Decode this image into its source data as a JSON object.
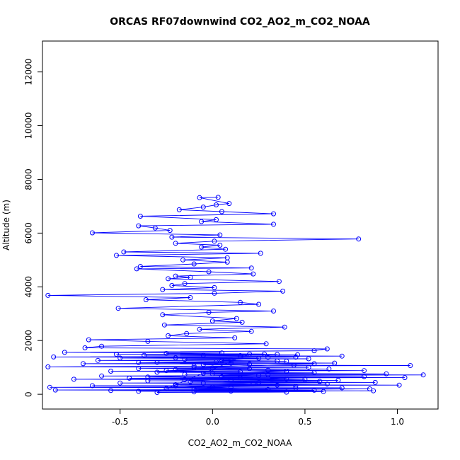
{
  "chart_data": {
    "type": "scatter",
    "title": "ORCAS RF07downwind CO2_AO2_m_CO2_NOAA",
    "xlabel": "CO2_AO2_m_CO2_NOAA",
    "ylabel": "Altitude (m)",
    "xlim": [
      -0.92,
      1.22
    ],
    "ylim": [
      -550,
      13150
    ],
    "xticks": [
      -0.5,
      0.0,
      0.5,
      1.0
    ],
    "xtick_labels": [
      "-0.5",
      "0.0",
      "0.5",
      "1.0"
    ],
    "yticks": [
      0,
      2000,
      4000,
      6000,
      8000,
      10000,
      12000
    ],
    "ytick_labels": [
      "0",
      "2000",
      "4000",
      "6000",
      "8000",
      "10000",
      "12000"
    ],
    "grid": false,
    "series": [
      {
        "color": "#0000ff",
        "connected": true,
        "marker": "open-circle",
        "points": [
          [
            0.03,
            7330
          ],
          [
            -0.07,
            7320
          ],
          [
            0.09,
            7100
          ],
          [
            0.02,
            7050
          ],
          [
            -0.05,
            6970
          ],
          [
            -0.18,
            6870
          ],
          [
            0.05,
            6800
          ],
          [
            0.33,
            6720
          ],
          [
            -0.39,
            6630
          ],
          [
            0.02,
            6500
          ],
          [
            -0.06,
            6430
          ],
          [
            0.33,
            6330
          ],
          [
            -0.4,
            6270
          ],
          [
            -0.31,
            6190
          ],
          [
            -0.23,
            6100
          ],
          [
            -0.65,
            6010
          ],
          [
            0.04,
            5930
          ],
          [
            -0.22,
            5850
          ],
          [
            0.79,
            5780
          ],
          [
            0.01,
            5700
          ],
          [
            -0.2,
            5620
          ],
          [
            0.04,
            5550
          ],
          [
            -0.06,
            5480
          ],
          [
            0.07,
            5400
          ],
          [
            -0.48,
            5300
          ],
          [
            0.26,
            5250
          ],
          [
            -0.52,
            5170
          ],
          [
            0.08,
            5080
          ],
          [
            -0.16,
            5000
          ],
          [
            0.08,
            4920
          ],
          [
            -0.1,
            4850
          ],
          [
            -0.39,
            4760
          ],
          [
            0.21,
            4700
          ],
          [
            -0.41,
            4670
          ],
          [
            -0.02,
            4560
          ],
          [
            0.22,
            4480
          ],
          [
            -0.2,
            4400
          ],
          [
            -0.12,
            4350
          ],
          [
            -0.24,
            4300
          ],
          [
            0.36,
            4200
          ],
          [
            -0.15,
            4120
          ],
          [
            -0.22,
            4050
          ],
          [
            0.01,
            3970
          ],
          [
            -0.27,
            3900
          ],
          [
            0.38,
            3840
          ],
          [
            0.01,
            3760
          ],
          [
            -0.89,
            3680
          ],
          [
            -0.12,
            3600
          ],
          [
            -0.36,
            3520
          ],
          [
            0.15,
            3420
          ],
          [
            0.25,
            3350
          ],
          [
            -0.51,
            3200
          ],
          [
            0.33,
            3100
          ],
          [
            -0.02,
            3050
          ],
          [
            -0.27,
            2960
          ],
          [
            0.13,
            2820
          ],
          [
            0.0,
            2730
          ],
          [
            0.16,
            2680
          ],
          [
            -0.26,
            2580
          ],
          [
            0.39,
            2500
          ],
          [
            -0.07,
            2420
          ],
          [
            0.21,
            2340
          ],
          [
            -0.14,
            2260
          ],
          [
            -0.24,
            2180
          ],
          [
            0.12,
            2100
          ],
          [
            -0.67,
            2030
          ],
          [
            -0.35,
            1970
          ],
          [
            0.29,
            1880
          ],
          [
            -0.6,
            1790
          ],
          [
            -0.69,
            1730
          ],
          [
            0.62,
            1690
          ],
          [
            0.55,
            1620
          ],
          [
            -0.8,
            1560
          ],
          [
            0.05,
            1540
          ],
          [
            -0.25,
            1520
          ],
          [
            0.28,
            1500
          ],
          [
            -0.52,
            1490
          ],
          [
            0.46,
            1470
          ],
          [
            -0.37,
            1450
          ],
          [
            0.7,
            1420
          ],
          [
            -0.86,
            1390
          ],
          [
            0.3,
            1370
          ],
          [
            -0.5,
            1350
          ],
          [
            0.52,
            1320
          ],
          [
            -0.15,
            1300
          ],
          [
            0.1,
            1280
          ],
          [
            -0.62,
            1260
          ],
          [
            0.4,
            1230
          ],
          [
            0.02,
            1210
          ],
          [
            -0.3,
            1190
          ],
          [
            0.66,
            1160
          ],
          [
            -0.7,
            1140
          ],
          [
            0.2,
            1120
          ],
          [
            -0.05,
            1100
          ],
          [
            0.44,
            1080
          ],
          [
            1.07,
            1070
          ],
          [
            -0.1,
            1050
          ],
          [
            -0.89,
            1020
          ],
          [
            0.52,
            1000
          ],
          [
            0.0,
            980
          ],
          [
            -0.4,
            960
          ],
          [
            0.63,
            940
          ],
          [
            -0.2,
            920
          ],
          [
            0.3,
            900
          ],
          [
            0.82,
            880
          ],
          [
            -0.55,
            860
          ],
          [
            0.15,
            840
          ],
          [
            -0.3,
            820
          ],
          [
            0.55,
            800
          ],
          [
            -0.05,
            780
          ],
          [
            0.94,
            760
          ],
          [
            -0.15,
            740
          ],
          [
            1.14,
            720
          ],
          [
            0.25,
            700
          ],
          [
            -0.6,
            680
          ],
          [
            0.82,
            660
          ],
          [
            0.05,
            640
          ],
          [
            1.04,
            620
          ],
          [
            -0.45,
            600
          ],
          [
            0.4,
            580
          ],
          [
            -0.75,
            560
          ],
          [
            0.1,
            540
          ],
          [
            0.68,
            520
          ],
          [
            -0.35,
            500
          ],
          [
            0.58,
            480
          ],
          [
            -0.12,
            460
          ],
          [
            0.88,
            440
          ],
          [
            -0.5,
            420
          ],
          [
            0.22,
            400
          ],
          [
            0.62,
            380
          ],
          [
            -0.2,
            360
          ],
          [
            1.01,
            340
          ],
          [
            -0.65,
            320
          ],
          [
            0.45,
            300
          ],
          [
            0.0,
            280
          ],
          [
            -0.88,
            260
          ],
          [
            0.7,
            240
          ],
          [
            -0.25,
            220
          ],
          [
            0.85,
            200
          ],
          [
            0.3,
            180
          ],
          [
            -0.85,
            160
          ],
          [
            0.55,
            150
          ],
          [
            -0.55,
            140
          ],
          [
            0.87,
            130
          ],
          [
            0.1,
            120
          ],
          [
            -0.4,
            110
          ],
          [
            0.6,
            100
          ],
          [
            -0.1,
            90
          ],
          [
            0.4,
            80
          ],
          [
            -0.3,
            70
          ],
          [
            0.2,
            1500
          ],
          [
            0.35,
            1480
          ],
          [
            -0.05,
            1460
          ],
          [
            0.15,
            1440
          ],
          [
            0.45,
            1380
          ],
          [
            -0.2,
            1360
          ],
          [
            0.25,
            1340
          ],
          [
            0.05,
            1260
          ],
          [
            0.35,
            1240
          ],
          [
            -0.4,
            1180
          ],
          [
            0.1,
            1160
          ],
          [
            0.55,
            1140
          ],
          [
            -0.1,
            1000
          ],
          [
            0.2,
            960
          ],
          [
            -0.25,
            880
          ],
          [
            0.4,
            860
          ],
          [
            0.0,
            760
          ],
          [
            0.3,
            740
          ],
          [
            -0.35,
            640
          ],
          [
            0.15,
            620
          ],
          [
            0.5,
            560
          ],
          [
            -0.15,
            540
          ],
          [
            0.25,
            440
          ],
          [
            -0.05,
            420
          ],
          [
            0.35,
            340
          ],
          [
            -0.2,
            320
          ],
          [
            0.1,
            240
          ],
          [
            0.45,
            220
          ],
          [
            -0.1,
            200
          ],
          [
            0.3,
            160
          ]
        ]
      }
    ]
  }
}
